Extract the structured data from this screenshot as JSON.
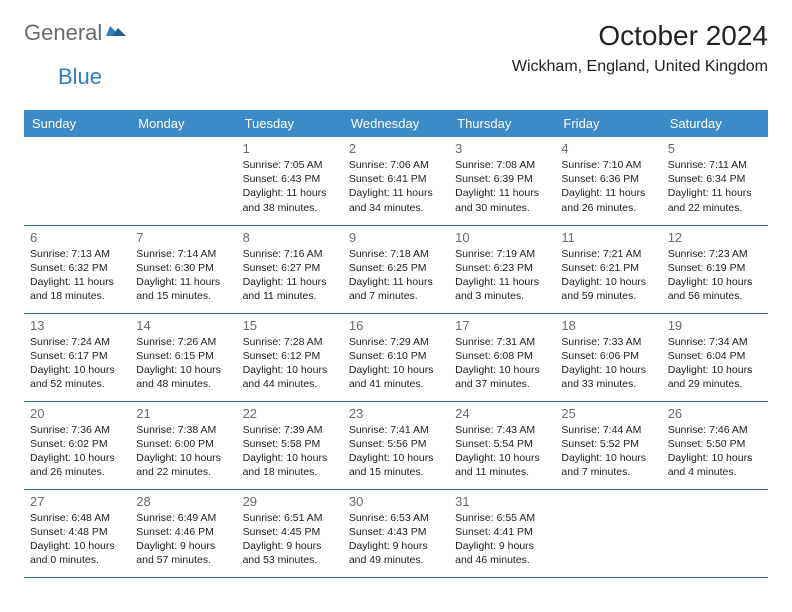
{
  "logo": {
    "general": "General",
    "blue": "Blue"
  },
  "title": "October 2024",
  "location": "Wickham, England, United Kingdom",
  "colors": {
    "header_bg": "#3b8bc8",
    "header_text": "#ffffff",
    "row_border": "#2d6aa0",
    "daynum": "#6b6b6b",
    "text": "#222222",
    "logo_gray": "#6b6b6b",
    "logo_blue": "#2f7ec2"
  },
  "day_headers": [
    "Sunday",
    "Monday",
    "Tuesday",
    "Wednesday",
    "Thursday",
    "Friday",
    "Saturday"
  ],
  "weeks": [
    [
      null,
      null,
      {
        "n": "1",
        "sr": "7:05 AM",
        "ss": "6:43 PM",
        "dl": "11 hours and 38 minutes."
      },
      {
        "n": "2",
        "sr": "7:06 AM",
        "ss": "6:41 PM",
        "dl": "11 hours and 34 minutes."
      },
      {
        "n": "3",
        "sr": "7:08 AM",
        "ss": "6:39 PM",
        "dl": "11 hours and 30 minutes."
      },
      {
        "n": "4",
        "sr": "7:10 AM",
        "ss": "6:36 PM",
        "dl": "11 hours and 26 minutes."
      },
      {
        "n": "5",
        "sr": "7:11 AM",
        "ss": "6:34 PM",
        "dl": "11 hours and 22 minutes."
      }
    ],
    [
      {
        "n": "6",
        "sr": "7:13 AM",
        "ss": "6:32 PM",
        "dl": "11 hours and 18 minutes."
      },
      {
        "n": "7",
        "sr": "7:14 AM",
        "ss": "6:30 PM",
        "dl": "11 hours and 15 minutes."
      },
      {
        "n": "8",
        "sr": "7:16 AM",
        "ss": "6:27 PM",
        "dl": "11 hours and 11 minutes."
      },
      {
        "n": "9",
        "sr": "7:18 AM",
        "ss": "6:25 PM",
        "dl": "11 hours and 7 minutes."
      },
      {
        "n": "10",
        "sr": "7:19 AM",
        "ss": "6:23 PM",
        "dl": "11 hours and 3 minutes."
      },
      {
        "n": "11",
        "sr": "7:21 AM",
        "ss": "6:21 PM",
        "dl": "10 hours and 59 minutes."
      },
      {
        "n": "12",
        "sr": "7:23 AM",
        "ss": "6:19 PM",
        "dl": "10 hours and 56 minutes."
      }
    ],
    [
      {
        "n": "13",
        "sr": "7:24 AM",
        "ss": "6:17 PM",
        "dl": "10 hours and 52 minutes."
      },
      {
        "n": "14",
        "sr": "7:26 AM",
        "ss": "6:15 PM",
        "dl": "10 hours and 48 minutes."
      },
      {
        "n": "15",
        "sr": "7:28 AM",
        "ss": "6:12 PM",
        "dl": "10 hours and 44 minutes."
      },
      {
        "n": "16",
        "sr": "7:29 AM",
        "ss": "6:10 PM",
        "dl": "10 hours and 41 minutes."
      },
      {
        "n": "17",
        "sr": "7:31 AM",
        "ss": "6:08 PM",
        "dl": "10 hours and 37 minutes."
      },
      {
        "n": "18",
        "sr": "7:33 AM",
        "ss": "6:06 PM",
        "dl": "10 hours and 33 minutes."
      },
      {
        "n": "19",
        "sr": "7:34 AM",
        "ss": "6:04 PM",
        "dl": "10 hours and 29 minutes."
      }
    ],
    [
      {
        "n": "20",
        "sr": "7:36 AM",
        "ss": "6:02 PM",
        "dl": "10 hours and 26 minutes."
      },
      {
        "n": "21",
        "sr": "7:38 AM",
        "ss": "6:00 PM",
        "dl": "10 hours and 22 minutes."
      },
      {
        "n": "22",
        "sr": "7:39 AM",
        "ss": "5:58 PM",
        "dl": "10 hours and 18 minutes."
      },
      {
        "n": "23",
        "sr": "7:41 AM",
        "ss": "5:56 PM",
        "dl": "10 hours and 15 minutes."
      },
      {
        "n": "24",
        "sr": "7:43 AM",
        "ss": "5:54 PM",
        "dl": "10 hours and 11 minutes."
      },
      {
        "n": "25",
        "sr": "7:44 AM",
        "ss": "5:52 PM",
        "dl": "10 hours and 7 minutes."
      },
      {
        "n": "26",
        "sr": "7:46 AM",
        "ss": "5:50 PM",
        "dl": "10 hours and 4 minutes."
      }
    ],
    [
      {
        "n": "27",
        "sr": "6:48 AM",
        "ss": "4:48 PM",
        "dl": "10 hours and 0 minutes."
      },
      {
        "n": "28",
        "sr": "6:49 AM",
        "ss": "4:46 PM",
        "dl": "9 hours and 57 minutes."
      },
      {
        "n": "29",
        "sr": "6:51 AM",
        "ss": "4:45 PM",
        "dl": "9 hours and 53 minutes."
      },
      {
        "n": "30",
        "sr": "6:53 AM",
        "ss": "4:43 PM",
        "dl": "9 hours and 49 minutes."
      },
      {
        "n": "31",
        "sr": "6:55 AM",
        "ss": "4:41 PM",
        "dl": "9 hours and 46 minutes."
      },
      null,
      null
    ]
  ],
  "labels": {
    "sunrise": "Sunrise:",
    "sunset": "Sunset:",
    "daylight": "Daylight:"
  }
}
